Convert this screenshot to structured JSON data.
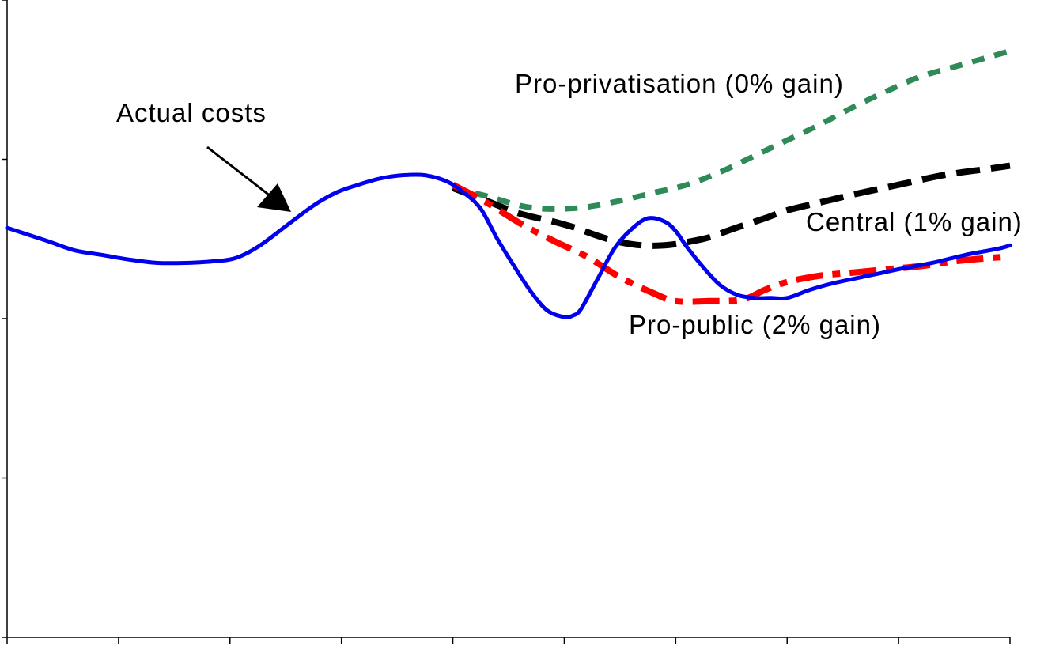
{
  "chart_data": {
    "type": "line",
    "title": "",
    "xlabel": "",
    "ylabel": "",
    "xlim": [
      0,
      9
    ],
    "ylim": [
      0,
      4
    ],
    "x_ticks": [
      0,
      1,
      2,
      3,
      4,
      5,
      6,
      7,
      8,
      9
    ],
    "y_ticks": [
      0,
      1,
      2,
      3,
      4
    ],
    "grid": false,
    "legend": "none",
    "series": [
      {
        "name": "Actual costs",
        "style": "solid",
        "color": "#0000ee",
        "x": [
          0,
          0.35,
          0.6,
          0.85,
          1.1,
          1.35,
          1.6,
          1.85,
          2.05,
          2.25,
          2.5,
          2.75,
          2.95,
          3.15,
          3.35,
          3.55,
          3.75,
          3.95,
          4.1,
          4.25,
          4.4,
          4.55,
          4.7,
          4.85,
          5.0,
          5.08,
          5.15,
          5.3,
          5.45,
          5.6,
          5.75,
          5.9,
          6.0,
          6.1,
          6.25,
          6.4,
          6.55,
          6.7,
          6.85,
          7.0,
          7.2,
          7.4,
          7.6,
          7.8,
          8.0,
          8.3,
          8.6,
          8.9,
          9.0
        ],
        "y": [
          2.57,
          2.49,
          2.43,
          2.4,
          2.37,
          2.35,
          2.35,
          2.36,
          2.38,
          2.45,
          2.58,
          2.71,
          2.79,
          2.84,
          2.88,
          2.9,
          2.9,
          2.86,
          2.79,
          2.69,
          2.5,
          2.33,
          2.17,
          2.05,
          2.01,
          2.02,
          2.06,
          2.25,
          2.44,
          2.56,
          2.63,
          2.61,
          2.55,
          2.45,
          2.32,
          2.21,
          2.15,
          2.13,
          2.13,
          2.13,
          2.18,
          2.22,
          2.25,
          2.28,
          2.31,
          2.35,
          2.4,
          2.44,
          2.46
        ]
      },
      {
        "name": "Pro-privatisation (0% gain)",
        "style": "dotted",
        "color": "#2e8b57",
        "x": [
          4.0,
          4.3,
          4.6,
          4.8,
          5.0,
          5.2,
          5.5,
          5.8,
          6.1,
          6.4,
          6.7,
          7.0,
          7.3,
          7.6,
          7.9,
          8.2,
          8.5,
          8.8,
          9.0
        ],
        "y": [
          2.82,
          2.77,
          2.71,
          2.69,
          2.69,
          2.7,
          2.74,
          2.79,
          2.84,
          2.92,
          3.02,
          3.12,
          3.22,
          3.33,
          3.43,
          3.52,
          3.58,
          3.64,
          3.68
        ]
      },
      {
        "name": "Central (1% gain)",
        "style": "dashed",
        "color": "#000000",
        "x": [
          4.0,
          4.3,
          4.6,
          4.9,
          5.1,
          5.3,
          5.5,
          5.7,
          5.9,
          6.1,
          6.3,
          6.5,
          6.8,
          7.0,
          7.3,
          7.6,
          8.0,
          8.4,
          8.8,
          9.0
        ],
        "y": [
          2.82,
          2.74,
          2.66,
          2.61,
          2.57,
          2.52,
          2.48,
          2.46,
          2.46,
          2.48,
          2.51,
          2.56,
          2.63,
          2.68,
          2.73,
          2.78,
          2.84,
          2.9,
          2.94,
          2.96
        ]
      },
      {
        "name": "Pro-public (2% gain)",
        "style": "dash-dot",
        "color": "#ff0000",
        "x": [
          4.0,
          4.3,
          4.6,
          4.9,
          5.2,
          5.5,
          5.8,
          6.0,
          6.3,
          6.6,
          6.8,
          7.0,
          7.3,
          7.6,
          7.9,
          8.2,
          8.5,
          8.8,
          9.0
        ],
        "y": [
          2.84,
          2.73,
          2.6,
          2.49,
          2.39,
          2.26,
          2.16,
          2.11,
          2.11,
          2.12,
          2.18,
          2.23,
          2.27,
          2.29,
          2.31,
          2.33,
          2.36,
          2.38,
          2.39
        ]
      }
    ],
    "annotations": [
      {
        "id": "actual",
        "text": "Actual costs"
      },
      {
        "id": "privatisation",
        "text": "Pro-privatisation (0% gain)"
      },
      {
        "id": "central",
        "text": "Central (1% gain)"
      },
      {
        "id": "public",
        "text": "Pro-public (2% gain)"
      }
    ]
  }
}
